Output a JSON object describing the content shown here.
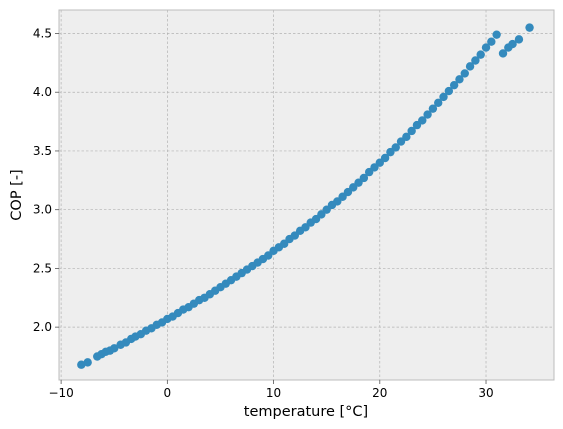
{
  "chart_data": {
    "type": "scatter",
    "title": "",
    "xlabel": "temperature [°C]",
    "ylabel": "COP [-]",
    "xlim": [
      -10.2,
      36.4
    ],
    "ylim": [
      1.55,
      4.7
    ],
    "x_ticks": [
      -10,
      0,
      10,
      20,
      30
    ],
    "y_ticks": [
      2.0,
      2.5,
      3.0,
      3.5,
      4.0,
      4.5
    ],
    "x_tick_labels": [
      "−10",
      "0",
      "10",
      "20",
      "30"
    ],
    "y_tick_labels": [
      "2.0",
      "2.5",
      "3.0",
      "3.5",
      "4.0",
      "4.5"
    ],
    "grid": true,
    "legend": "none",
    "background_color": "#EEEEEE",
    "marker_color": "#348ABD",
    "series": [
      {
        "x": [
          -8.1,
          -7.5,
          -6.6,
          -6.2,
          -5.8,
          -5.4,
          -5.0,
          -4.4,
          -3.9,
          -3.4,
          -3.0,
          -2.5,
          -2.0,
          -1.5,
          -1.0,
          -0.5,
          0.0,
          0.5,
          1.0,
          1.5,
          2.0,
          2.5,
          3.0,
          3.5,
          4.0,
          4.5,
          5.0,
          5.5,
          6.0,
          6.5,
          7.0,
          7.5,
          8.0,
          8.5,
          9.0,
          9.5,
          10.0,
          10.5,
          11.0,
          11.5,
          12.0,
          12.5,
          13.0,
          13.5,
          14.0,
          14.5,
          15.0,
          15.5,
          16.0,
          16.5,
          17.0,
          17.5,
          18.0,
          18.5,
          19.0,
          19.5,
          20.0,
          20.5,
          21.0,
          21.5,
          22.0,
          22.5,
          23.0,
          23.5,
          24.0,
          24.5,
          25.0,
          25.5,
          26.0,
          26.5,
          27.0,
          27.5,
          28.0,
          28.5,
          29.0,
          29.5,
          30.0,
          30.5,
          31.0,
          31.6,
          32.1,
          32.5,
          33.1,
          34.1
        ],
        "y": [
          1.68,
          1.7,
          1.75,
          1.77,
          1.79,
          1.8,
          1.82,
          1.85,
          1.87,
          1.9,
          1.92,
          1.94,
          1.97,
          1.99,
          2.02,
          2.04,
          2.07,
          2.09,
          2.12,
          2.15,
          2.17,
          2.2,
          2.23,
          2.25,
          2.28,
          2.31,
          2.34,
          2.37,
          2.4,
          2.43,
          2.46,
          2.49,
          2.52,
          2.55,
          2.58,
          2.61,
          2.65,
          2.68,
          2.71,
          2.75,
          2.78,
          2.82,
          2.85,
          2.89,
          2.92,
          2.96,
          3.0,
          3.04,
          3.07,
          3.11,
          3.15,
          3.19,
          3.23,
          3.27,
          3.32,
          3.36,
          3.4,
          3.44,
          3.49,
          3.53,
          3.58,
          3.62,
          3.67,
          3.72,
          3.76,
          3.81,
          3.86,
          3.91,
          3.96,
          4.01,
          4.06,
          4.11,
          4.16,
          4.22,
          4.27,
          4.32,
          4.38,
          4.43,
          4.49,
          4.33,
          4.38,
          4.41,
          4.45,
          4.55
        ]
      }
    ]
  }
}
